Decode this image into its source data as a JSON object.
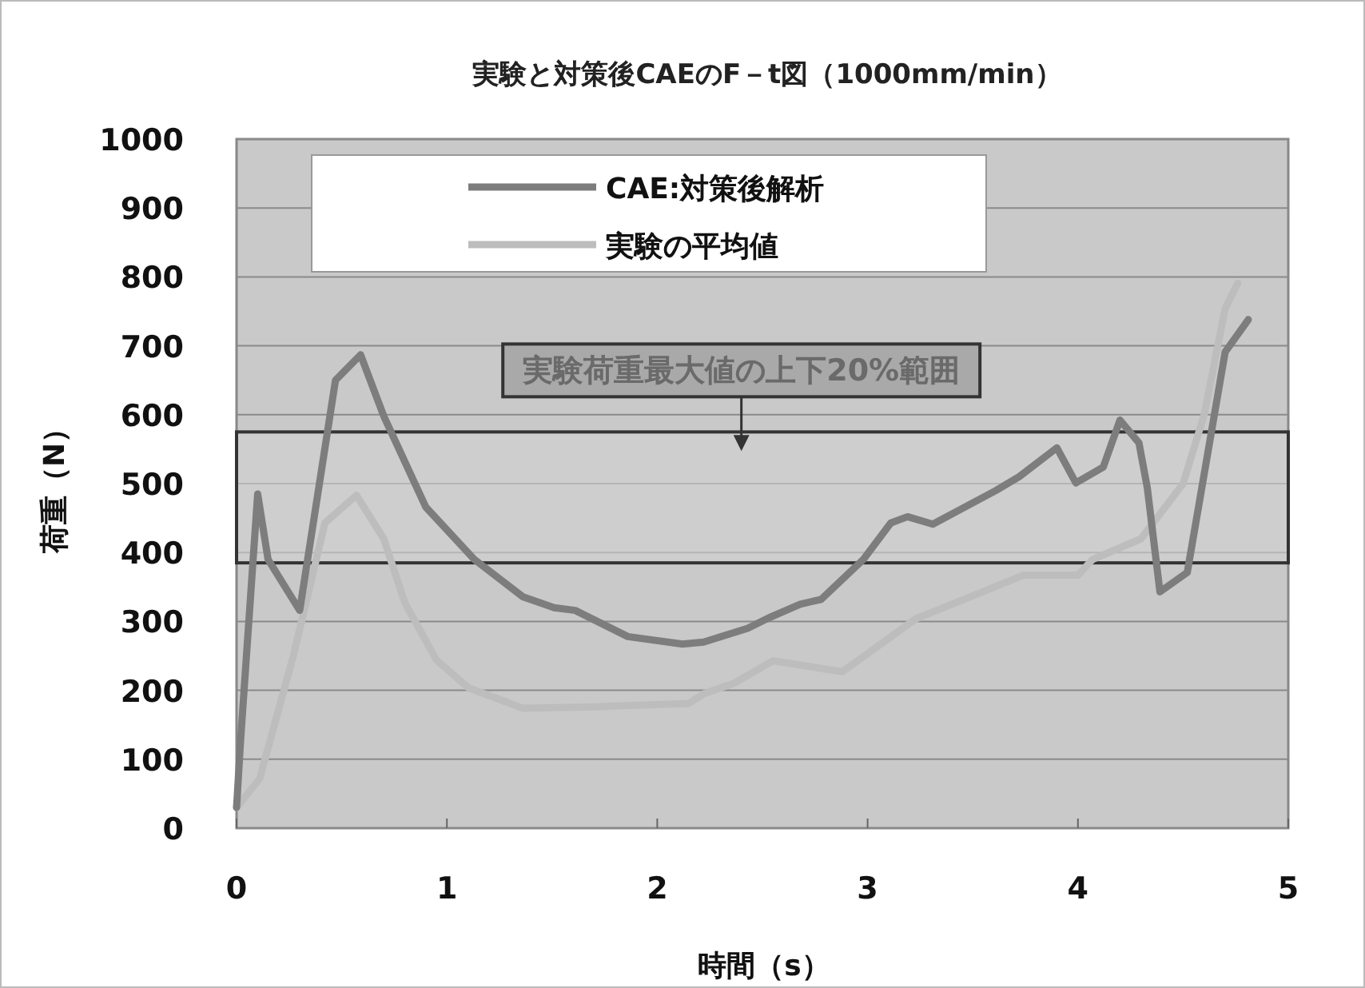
{
  "chart_data": {
    "type": "line",
    "title": "実験と対策後CAEのF－t図（1000mm/min）",
    "xlabel": "時間（s）",
    "ylabel": "荷重（N）",
    "xlim": [
      0,
      5
    ],
    "xticks": [
      0,
      1,
      2,
      3,
      4,
      5
    ],
    "ylim": [
      0,
      1000
    ],
    "yticks": [
      0,
      100,
      200,
      300,
      400,
      500,
      600,
      700,
      800,
      900,
      1000
    ],
    "grid": "y",
    "legend": "top left",
    "series": [
      {
        "name": "CAE:対策後解析",
        "color": "#7d7d7d",
        "x": [
          0,
          0.02,
          0.1,
          0.15,
          0.3,
          0.47,
          0.59,
          0.7,
          0.9,
          1.13,
          1.36,
          1.51,
          1.61,
          1.86,
          2.12,
          2.22,
          2.43,
          2.53,
          2.68,
          2.78,
          2.98,
          3.11,
          3.19,
          3.31,
          3.61,
          3.72,
          3.9,
          3.99,
          4.12,
          4.2,
          4.29,
          4.33,
          4.39,
          4.52,
          4.7,
          4.81
        ],
        "values": [
          30,
          130,
          485,
          390,
          316,
          650,
          687,
          598,
          466,
          390,
          336,
          320,
          316,
          278,
          267,
          270,
          290,
          305,
          325,
          332,
          390,
          443,
          452,
          441,
          490,
          510,
          552,
          501,
          524,
          592,
          559,
          494,
          343,
          371,
          691,
          738
        ]
      },
      {
        "name": "実験の平均値",
        "color": "#bdbdbd",
        "x": [
          0,
          0.11,
          0.27,
          0.42,
          0.57,
          0.7,
          0.8,
          0.95,
          1.1,
          1.36,
          1.71,
          2.15,
          2.22,
          2.37,
          2.55,
          2.88,
          3.23,
          3.49,
          3.74,
          4.0,
          4.07,
          4.3,
          4.5,
          4.6,
          4.7,
          4.76
        ],
        "values": [
          30,
          72,
          250,
          443,
          483,
          420,
          327,
          244,
          204,
          174,
          176,
          181,
          195,
          211,
          243,
          227,
          304,
          336,
          367,
          367,
          390,
          420,
          500,
          600,
          754,
          791
        ]
      }
    ],
    "bands": [
      {
        "axis": "y",
        "from": 385,
        "to": 575,
        "label": "実験荷重最大値の上下20%範囲"
      }
    ]
  }
}
